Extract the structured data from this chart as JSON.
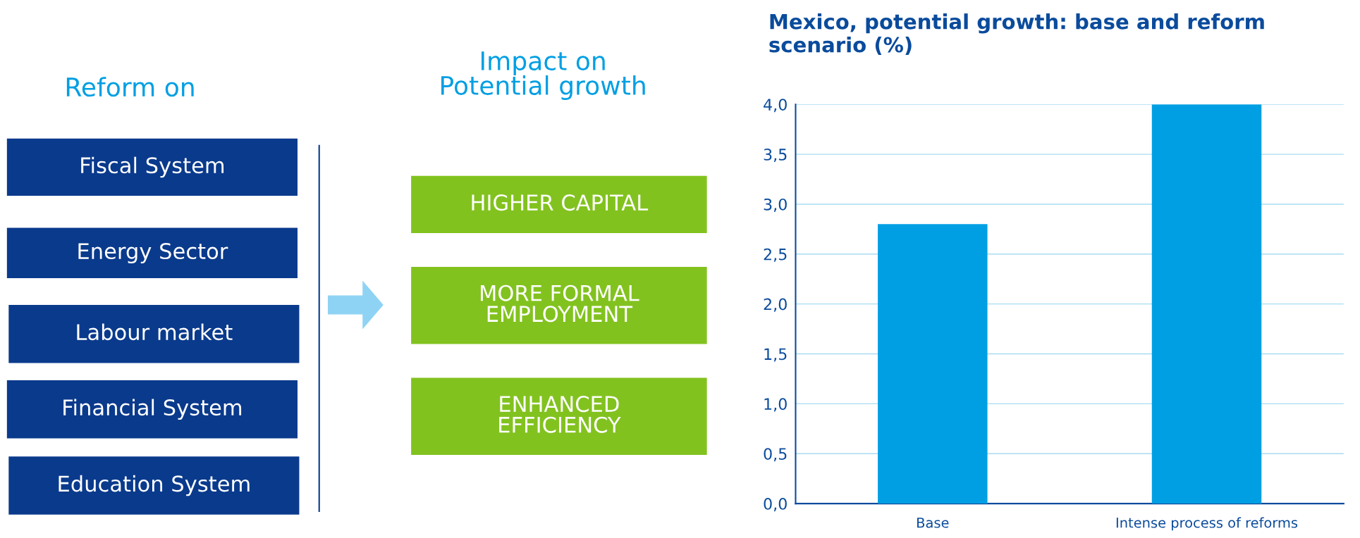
{
  "chart_data": [
    {
      "type": "other",
      "annotations": [
        "Reform on",
        "Impact on\nPotential growth",
        "Fiscal System",
        "Energy Sector",
        "Labour market",
        "Financial System",
        "Education System",
        "HIGHER CAPITAL",
        "MORE FORMAL\nEMPLOYMENT",
        "ENHANCED\nEFFICIENCY"
      ]
    },
    {
      "type": "bar",
      "title": "Mexico, potential growth: base and reform scenario (%)",
      "categories": [
        "Base",
        "Intense process of reforms"
      ],
      "values": [
        2.8,
        4.0
      ],
      "color": "#009fe3",
      "ylim": [
        0,
        4.0
      ],
      "yticks": [
        {
          "value": 0,
          "label": "0,0"
        },
        {
          "value": 0.5,
          "label": "0,5"
        },
        {
          "value": 1.0,
          "label": "1,0"
        },
        {
          "value": 1.5,
          "label": "1,5"
        },
        {
          "value": 2.0,
          "label": "2,0"
        },
        {
          "value": 2.5,
          "label": "2,5"
        },
        {
          "value": 3.0,
          "label": "3,0"
        },
        {
          "value": 3.5,
          "label": "3,5"
        },
        {
          "value": 4.0,
          "label": "4,0"
        }
      ],
      "grid": "y"
    }
  ]
}
